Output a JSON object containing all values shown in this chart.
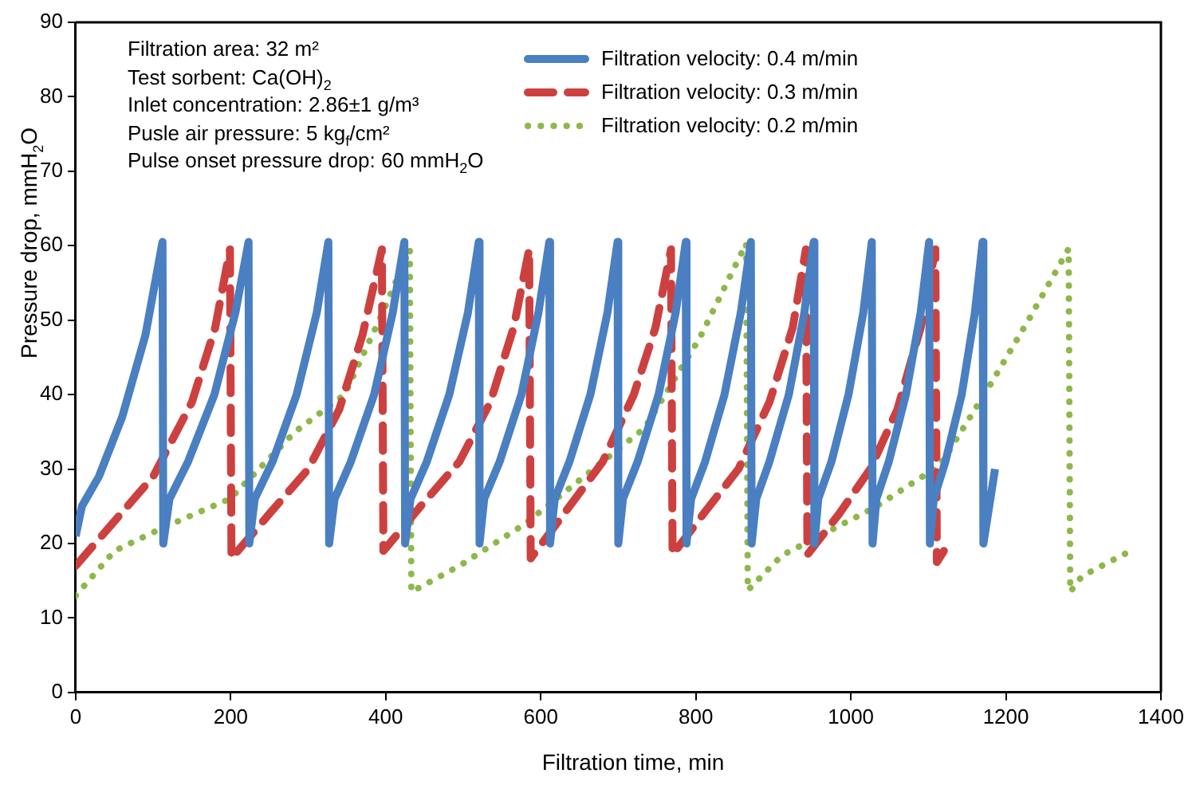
{
  "chart_data": {
    "type": "line",
    "xlabel": "Filtration time, min",
    "ylabel": "Pressure drop, mmH$_{2}$O",
    "xlim": [
      0,
      1400
    ],
    "xticks": [
      0,
      200,
      400,
      600,
      800,
      1000,
      1200,
      1400
    ],
    "ylim": [
      0,
      90
    ],
    "yticks": [
      0,
      10,
      20,
      30,
      40,
      50,
      60,
      70,
      80,
      90
    ],
    "legend": "top right",
    "annotations": [
      "Filtration area: 32 m²",
      "Test sorbent: Ca(OH)$_{2}$",
      "Inlet concentration: 2.86±1 g/m³",
      "Pusle air pressure: 5 kg$_{f}$/cm²",
      "Pulse onset pressure drop: 60 mmH$_{2}$O"
    ],
    "series": [
      {
        "name": "Filtration velocity: 0.4 m/min",
        "color": "#4a7fc1",
        "line_style": "solid",
        "x": [
          0,
          8,
          30,
          60,
          90,
          112,
          113,
          121,
          145,
          179,
          206,
          223,
          224,
          231,
          254,
          285,
          311,
          326,
          327,
          334,
          355,
          385,
          409,
          424,
          425,
          432,
          453,
          482,
          506,
          520,
          521,
          527,
          547,
          575,
          597,
          611,
          612,
          618,
          637,
          664,
          686,
          699,
          700,
          706,
          725,
          752,
          774,
          787,
          788,
          794,
          812,
          837,
          858,
          871,
          872,
          878,
          895,
          920,
          940,
          952,
          953,
          958,
          975,
          997,
          1016,
          1027,
          1028,
          1033,
          1049,
          1071,
          1090,
          1101,
          1102,
          1107,
          1122,
          1143,
          1160,
          1170,
          1171,
          1186
        ],
        "values": [
          21,
          25,
          29,
          37,
          48,
          60.5,
          20,
          26,
          31,
          40,
          51,
          60.5,
          20,
          26,
          31,
          40,
          51,
          60.5,
          20,
          26,
          31,
          40,
          51,
          60.5,
          20,
          26,
          31,
          40,
          51,
          60.5,
          20,
          26,
          31,
          40,
          51,
          60.5,
          20,
          26,
          31,
          40,
          51,
          60.5,
          20,
          26,
          31,
          40,
          51,
          60.5,
          20,
          26,
          31,
          40,
          51,
          60.5,
          20,
          26,
          31,
          40,
          51,
          60.5,
          20,
          26,
          31,
          40,
          51,
          60.5,
          20,
          26,
          31,
          40,
          51,
          60.5,
          20,
          26,
          31,
          40,
          51,
          60.5,
          20,
          30
        ]
      },
      {
        "name": "Filtration velocity: 0.3 m/min",
        "color": "#cc4140",
        "line_style": "dashed",
        "x": [
          0,
          50,
          100,
          150,
          180,
          199,
          201,
          250,
          300,
          340,
          370,
          395,
          397,
          445,
          495,
          535,
          565,
          585,
          587,
          630,
          680,
          720,
          748,
          768,
          770,
          810,
          855,
          895,
          925,
          942,
          944,
          985,
          1025,
          1060,
          1090,
          1109,
          1111,
          1120
        ],
        "values": [
          17,
          23,
          29,
          39,
          49,
          59.5,
          18,
          24,
          30,
          38,
          48,
          59.5,
          19,
          25,
          31,
          39,
          49,
          59.5,
          18,
          24,
          31,
          40,
          49,
          59.5,
          18.5,
          24,
          30,
          39,
          49,
          59.5,
          18.5,
          24,
          30,
          38,
          49,
          59.5,
          17.5,
          19
        ]
      },
      {
        "name": "Filtration velocity: 0.2 m/min",
        "color": "#8db84a",
        "line_style": "dotted",
        "x": [
          0,
          50,
          110,
          199,
          283,
          347,
          396,
          431,
          433,
          495,
          579,
          692,
          734,
          805,
          865,
          867,
          911,
          1030,
          1115,
          1178,
          1228,
          1281,
          1283,
          1298,
          1357
        ],
        "values": [
          13,
          19,
          22,
          26,
          35,
          40,
          51,
          59.6,
          13.5,
          17,
          22.6,
          32,
          35.5,
          47.6,
          60.3,
          13.7,
          18.4,
          24.8,
          30.5,
          41,
          49.8,
          59.6,
          13.5,
          15.6,
          18.8
        ]
      }
    ]
  }
}
